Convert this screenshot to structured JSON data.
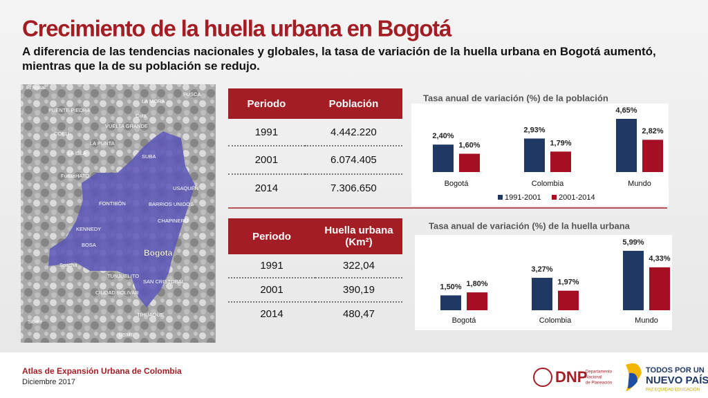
{
  "header": {
    "title": "Crecimiento de la huella urbana en Bogotá",
    "subtitle": "A diferencia de las tendencias nacionales y globales, la tasa de variación de la huella urbana en Bogotá aumentó, mientras que la de su población se redujo."
  },
  "map": {
    "labels": [
      "El Rosal",
      "FUSCA",
      "LA MORA",
      "PUENTE PIEDRA",
      "Cota",
      "VUELTA GRANDE",
      "COELI",
      "LA PUNTA",
      "LA ISLA",
      "SUBA",
      "EL HATO",
      "Funza",
      "USAQUÉN",
      "FONTIBÓN",
      "BARRIOS UNIDOS",
      "CHAPINERO",
      "KENNEDY",
      "BOSA",
      "Bogota",
      "Soacha",
      "TUNJUELITO",
      "SAN CRISTOBAL",
      "CIUDAD BOLIVAR",
      "Sibaté",
      "TIHUAQUE",
      "USME"
    ]
  },
  "tables": [
    {
      "headers": [
        "Periodo",
        "Población"
      ],
      "rows": [
        [
          "1991",
          "4.442.220"
        ],
        [
          "2001",
          "6.074.405"
        ],
        [
          "2014",
          "7.306.650"
        ]
      ]
    },
    {
      "headers": [
        "Periodo",
        "Huella urbana (Km²)"
      ],
      "rows": [
        [
          "1991",
          "322,04"
        ],
        [
          "2001",
          "390,19"
        ],
        [
          "2014",
          "480,47"
        ]
      ]
    }
  ],
  "chart_data": [
    {
      "type": "bar",
      "title": "Tasa anual de variación (%) de la población",
      "categories": [
        "Bogotá",
        "Colombia",
        "Mundo"
      ],
      "series": [
        {
          "name": "1991-2001",
          "color": "#1f3864",
          "values": [
            2.4,
            2.93,
            4.65
          ],
          "value_labels": [
            "2,40%",
            "2,93%",
            "4,65%"
          ]
        },
        {
          "name": "2001-2014",
          "color": "#a50f24",
          "values": [
            1.6,
            1.79,
            2.82
          ],
          "value_labels": [
            "1,60%",
            "1,79%",
            "2,82%"
          ]
        }
      ],
      "legend": true
    },
    {
      "type": "bar",
      "title": "Tasa anual de variación (%) de la huella urbana",
      "categories": [
        "Bogotá",
        "Colombia",
        "Mundo"
      ],
      "series": [
        {
          "name": "1991-2001",
          "color": "#1f3864",
          "values": [
            1.5,
            3.27,
            5.99
          ],
          "value_labels": [
            "1,50%",
            "3,27%",
            "5,99%"
          ]
        },
        {
          "name": "2001-2014",
          "color": "#a50f24",
          "values": [
            1.8,
            1.97,
            4.33
          ],
          "value_labels": [
            "1,80%",
            "1,97%",
            "4,33%"
          ]
        }
      ],
      "legend": false
    }
  ],
  "footer": {
    "source": "Atlas de Expansión Urbana de Colombia",
    "date": "Diciembre 2017",
    "dnp": "DNP",
    "dnp_name": [
      "Departamento",
      "Nacional",
      "de Planeación"
    ],
    "slogan": [
      "TODOS POR UN",
      "NUEVO PAÍS"
    ],
    "motto": "PAZ  EQUIDAD  EDUCACIÓN"
  }
}
